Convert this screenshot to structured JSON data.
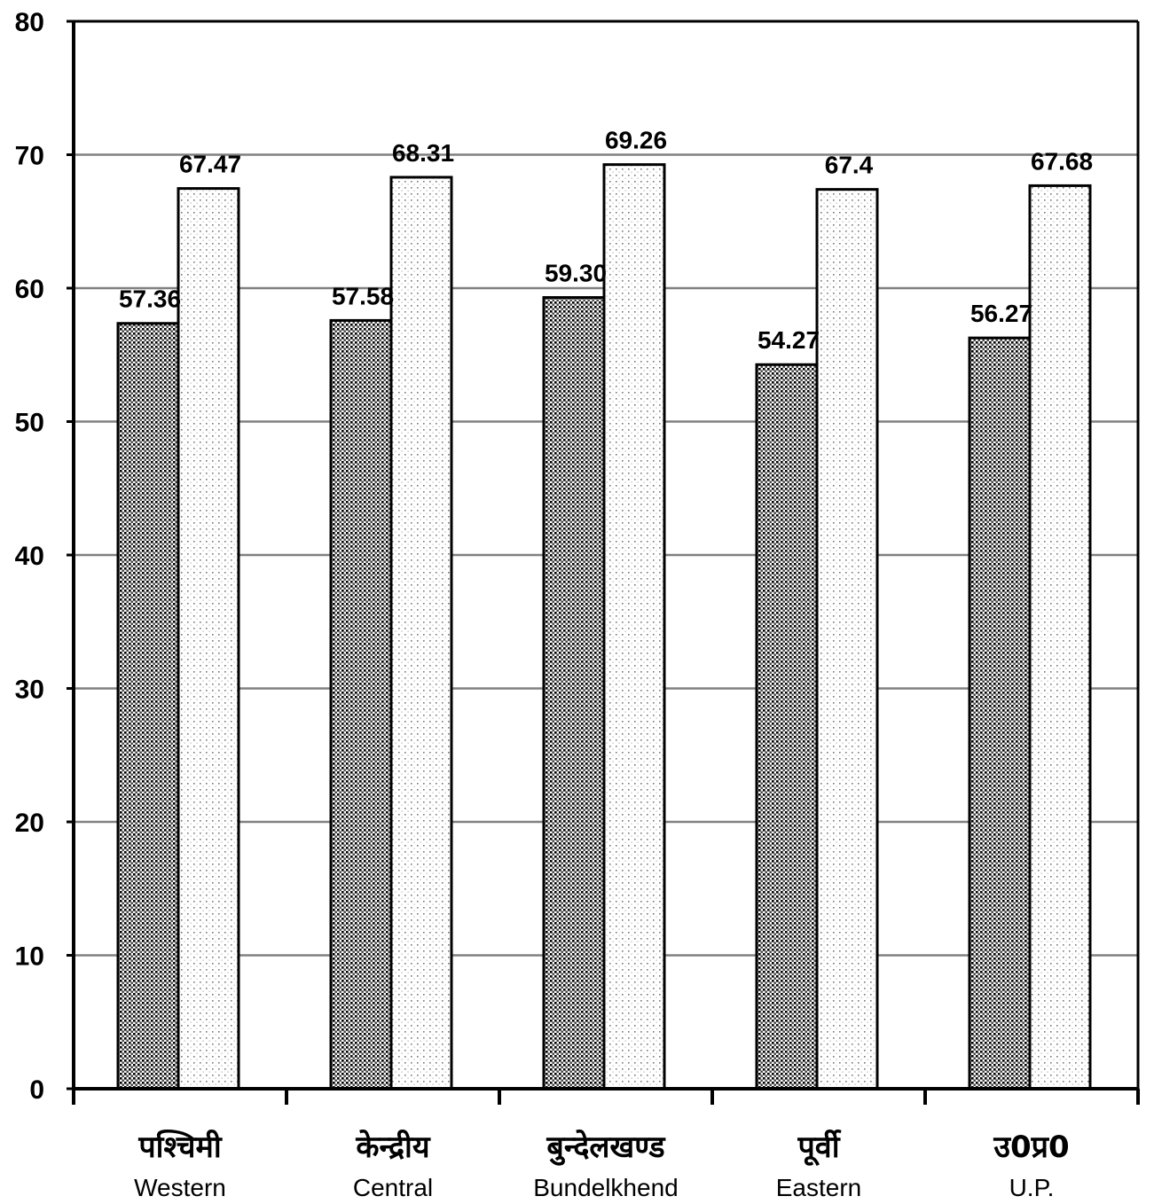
{
  "chart_data": {
    "type": "bar",
    "title": "",
    "xlabel": "",
    "ylabel": "",
    "ylim": [
      0,
      80
    ],
    "yticks": [
      0,
      10,
      20,
      30,
      40,
      50,
      60,
      70,
      80
    ],
    "grid": true,
    "legend": "none",
    "categories": [
      {
        "hindi": "पश्चिमी",
        "english": "Western"
      },
      {
        "hindi": "केन्द्रीय",
        "english": "Central"
      },
      {
        "hindi": "बुन्देलखण्ड",
        "english": "Bundelkhend"
      },
      {
        "hindi": "पूर्वी",
        "english": "Eastern"
      },
      {
        "hindi": "उ0प्र0",
        "english": "U.P."
      }
    ],
    "series": [
      {
        "values": [
          57.36,
          57.58,
          59.3,
          54.27,
          56.27
        ],
        "labels": [
          "57.36",
          "57.58",
          "59.30",
          "54.27",
          "56.27"
        ],
        "pattern": "dense-dots"
      },
      {
        "values": [
          67.47,
          68.31,
          69.26,
          67.4,
          67.68
        ],
        "labels": [
          "67.47",
          "68.31",
          "69.26",
          "67.4",
          "67.68"
        ],
        "pattern": "sparse-dots"
      }
    ],
    "colors": {
      "axis": "#000000",
      "grid": "#808080",
      "bar_outline": "#000000"
    }
  }
}
